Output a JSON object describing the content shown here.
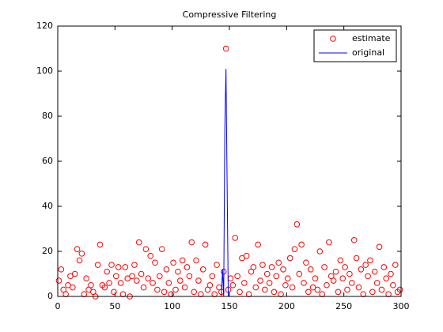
{
  "chart_data": {
    "type": "scatter-line",
    "title": "Compressive Filtering",
    "xlim": [
      0,
      300
    ],
    "xticks": [
      0,
      50,
      100,
      150,
      200,
      250,
      300
    ],
    "ylim": [
      0,
      120
    ],
    "yticks": [
      0,
      20,
      40,
      60,
      80,
      100,
      120
    ],
    "legend": "northeast",
    "series": [
      {
        "name": "estimate",
        "kind": "scatter",
        "color": "#ff0000",
        "x": [
          1,
          3,
          5,
          7,
          9,
          11,
          13,
          15,
          17,
          19,
          21,
          23,
          25,
          27,
          29,
          31,
          33,
          35,
          37,
          39,
          41,
          43,
          45,
          47,
          49,
          51,
          53,
          55,
          57,
          59,
          61,
          63,
          65,
          67,
          69,
          71,
          73,
          75,
          77,
          79,
          81,
          83,
          85,
          87,
          89,
          91,
          93,
          95,
          97,
          99,
          101,
          103,
          105,
          107,
          109,
          111,
          113,
          115,
          117,
          119,
          121,
          123,
          125,
          127,
          129,
          131,
          133,
          135,
          137,
          139,
          141,
          143,
          145,
          147,
          149,
          151,
          153,
          155,
          157,
          159,
          161,
          163,
          165,
          167,
          169,
          171,
          173,
          175,
          177,
          179,
          181,
          183,
          185,
          187,
          189,
          191,
          193,
          195,
          197,
          199,
          201,
          203,
          205,
          207,
          209,
          211,
          213,
          215,
          217,
          219,
          221,
          223,
          225,
          227,
          229,
          231,
          233,
          235,
          237,
          239,
          241,
          243,
          245,
          247,
          249,
          251,
          253,
          255,
          257,
          259,
          261,
          263,
          265,
          267,
          269,
          271,
          273,
          275,
          277,
          279,
          281,
          283,
          285,
          287,
          289,
          291,
          293,
          295,
          297,
          299
        ],
        "values": [
          7,
          12,
          3,
          1,
          5,
          9,
          4,
          10,
          21,
          16,
          19,
          1,
          8,
          3,
          5,
          2,
          0,
          14,
          23,
          5,
          4,
          11,
          6,
          14,
          2,
          9,
          13,
          6,
          1,
          13,
          8,
          0,
          9,
          14,
          7,
          24,
          10,
          4,
          21,
          8,
          18,
          6,
          15,
          3,
          9,
          21,
          2,
          12,
          6,
          1,
          15,
          3,
          11,
          7,
          16,
          4,
          13,
          9,
          24,
          2,
          16,
          7,
          1,
          12,
          23,
          3,
          5,
          9,
          1,
          14,
          4,
          2,
          11,
          110,
          3,
          8,
          5,
          26,
          9,
          2,
          17,
          6,
          18,
          1,
          11,
          13,
          4,
          23,
          7,
          14,
          3,
          10,
          6,
          13,
          2,
          9,
          15,
          1,
          12,
          5,
          8,
          17,
          4,
          21,
          32,
          10,
          23,
          6,
          15,
          2,
          12,
          4,
          8,
          3,
          20,
          1,
          13,
          5,
          24,
          9,
          7,
          11,
          2,
          16,
          8,
          13,
          3,
          10,
          6,
          25,
          17,
          4,
          12,
          1,
          14,
          9,
          16,
          2,
          11,
          6,
          22,
          3,
          13,
          8,
          1,
          10,
          5,
          14,
          2,
          3
        ]
      },
      {
        "name": "original",
        "kind": "line",
        "color": "#0000ff",
        "x": [
          0,
          143,
          144,
          145,
          146,
          147,
          148,
          149,
          300
        ],
        "values": [
          0,
          0,
          12,
          0,
          75,
          101,
          50,
          0,
          0
        ]
      }
    ]
  }
}
